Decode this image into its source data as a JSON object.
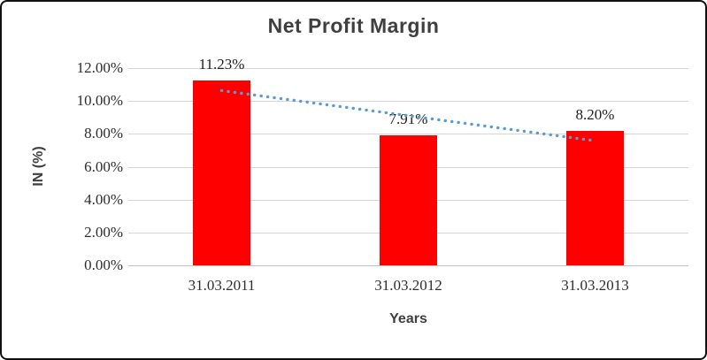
{
  "chart_data": {
    "type": "bar",
    "title": "Net Profit Margin",
    "xlabel": "Years",
    "ylabel": "IN (%)",
    "categories": [
      "31.03.2011",
      "31.03.2012",
      "31.03.2013"
    ],
    "values": [
      11.23,
      7.91,
      8.2
    ],
    "data_labels": [
      "11.23%",
      "7.91%",
      "8.20%"
    ],
    "ylim": [
      0,
      12
    ],
    "ytick_step": 2,
    "ytick_labels": [
      "0.00%",
      "2.00%",
      "4.00%",
      "6.00%",
      "8.00%",
      "10.00%",
      "12.00%"
    ],
    "grid": true,
    "legend": "none",
    "bar_color": "#ff0000",
    "trendline": {
      "type": "linear",
      "style": "dotted",
      "color": "#5b9bd5",
      "start_value": 10.63,
      "end_value": 7.6
    },
    "colors": {
      "gridline": "#d6d6d6",
      "axis_line": "#c2c2c2",
      "title_text": "#3f3f3f",
      "tick_text": "#2e2e2e",
      "frame_border": "#111111"
    }
  }
}
